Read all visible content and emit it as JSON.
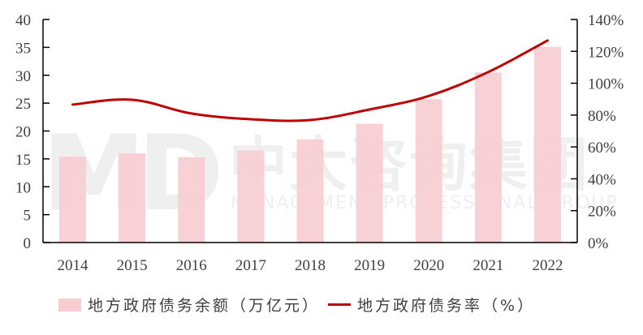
{
  "chart_data": {
    "type": "bar+line",
    "title": "",
    "categories": [
      "2014",
      "2015",
      "2016",
      "2017",
      "2018",
      "2019",
      "2020",
      "2021",
      "2022"
    ],
    "series": [
      {
        "name": "地方政府债务余额（万亿元）",
        "type": "bar",
        "axis": "left",
        "color": "#f7cdd2",
        "values": [
          15.4,
          16.0,
          15.3,
          16.5,
          18.5,
          21.3,
          25.7,
          30.5,
          35.1
        ]
      },
      {
        "name": "地方政府债务率（%）",
        "type": "line",
        "axis": "right",
        "color": "#c00000",
        "values": [
          86.6,
          89.6,
          81.0,
          77.4,
          76.9,
          83.5,
          92.0,
          107.0,
          126.8
        ]
      }
    ],
    "left_axis": {
      "ylim": [
        0,
        40
      ],
      "ticks": [
        "0",
        "5",
        "10",
        "15",
        "20",
        "25",
        "30",
        "35",
        "40"
      ]
    },
    "right_axis": {
      "ylim": [
        0,
        140
      ],
      "ticks": [
        "0%",
        "20%",
        "40%",
        "60%",
        "80%",
        "100%",
        "120%",
        "140%"
      ]
    },
    "xlabel": "",
    "ylabel": "",
    "y2label": "",
    "grid": false,
    "legend_position": "bottom"
  },
  "legend": {
    "bar_label": "地方政府债务余额（万亿元）",
    "line_label": "地方政府债务率（%）"
  },
  "watermark": {
    "logo": "MD",
    "cn": "中大咨询集团",
    "en": "MANAGEMENT PROFESSIONAL GROUP"
  }
}
